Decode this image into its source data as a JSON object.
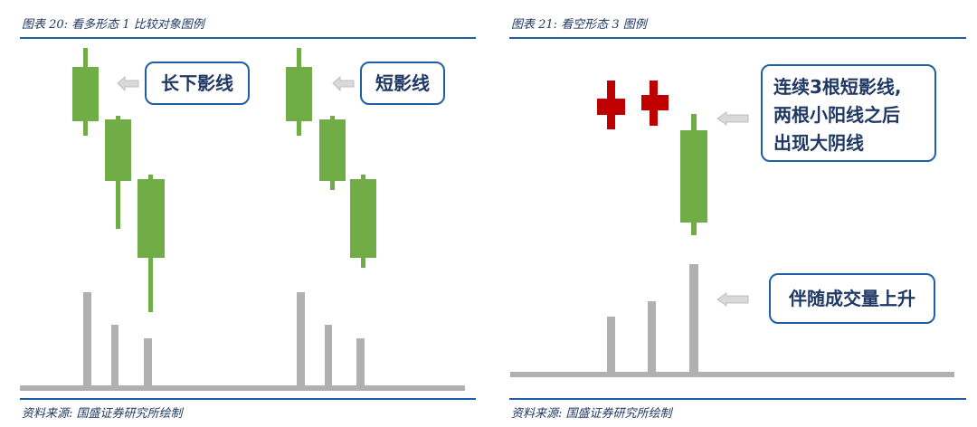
{
  "left": {
    "title": "图表 20:  看多形态 1 比较对象图例",
    "callout_long_lower_shadow": "长下影线",
    "callout_short_shadow": "短影线",
    "source": "资料来源:  国盛证券研究所绘制"
  },
  "right": {
    "title": "图表 21:  看空形态 3 图例",
    "callout_pattern": [
      "连续3根短影线,",
      "两根小阳线之后",
      "出现大阴线"
    ],
    "callout_volume": "伴随成交量上升",
    "source": "资料来源:  国盛证券研究所绘制"
  },
  "colors": {
    "bearish_candle": "#70ad47",
    "bullish_candle": "#c00000",
    "volume_bar": "#b0b0b0",
    "arrow": "#bfbfbf",
    "accent": "#1f5fa6"
  }
}
